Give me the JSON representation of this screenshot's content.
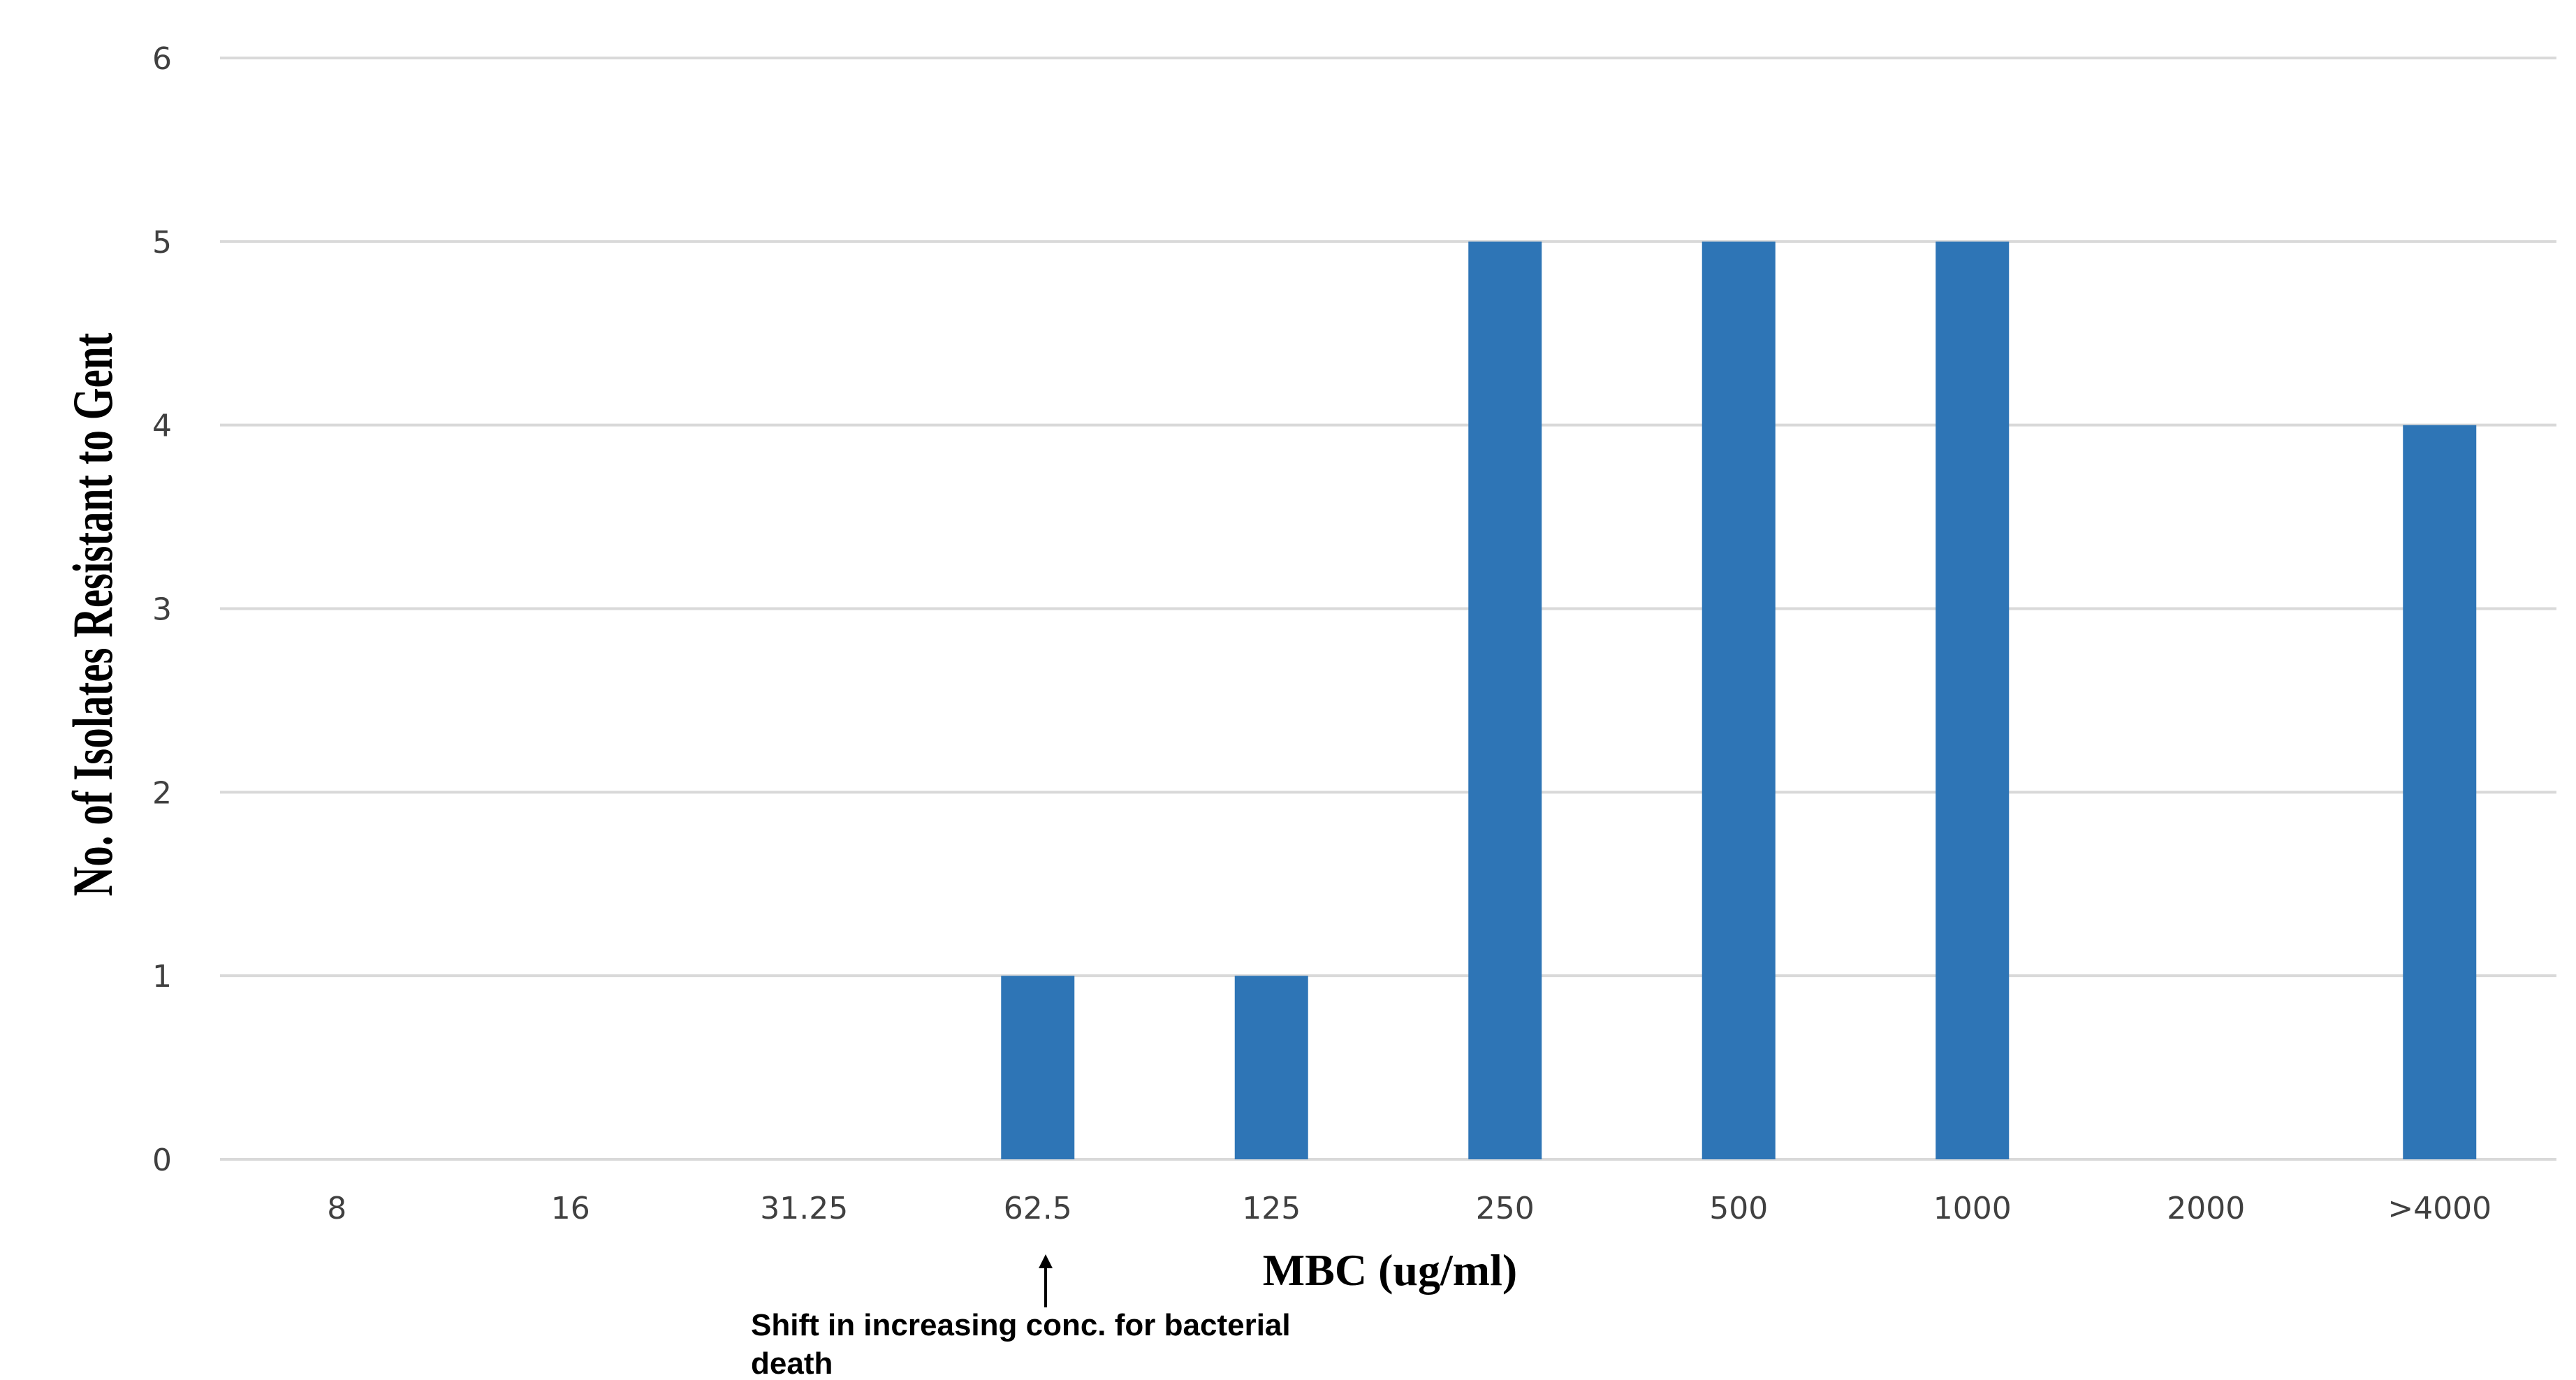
{
  "chart_data": {
    "type": "bar",
    "categories": [
      "8",
      "16",
      "31.25",
      "62.5",
      "125",
      "250",
      "500",
      "1000",
      "2000",
      ">4000"
    ],
    "values": [
      0,
      0,
      0,
      1,
      1,
      5,
      5,
      5,
      0,
      4
    ],
    "title": "",
    "xlabel": "MBC (ug/ml)",
    "ylabel": "No. of Isolates Resistant to Gent",
    "ylim": [
      0,
      6
    ],
    "yticks": [
      "0",
      "1",
      "2",
      "3",
      "4",
      "5",
      "6"
    ],
    "grid": true,
    "bar_color": "#2E75B6",
    "grid_color": "#D9D9D9",
    "annotation": {
      "arrow_target": "62.5",
      "lines": [
        "Shift in increasing conc. for bacterial",
        "death"
      ]
    }
  }
}
